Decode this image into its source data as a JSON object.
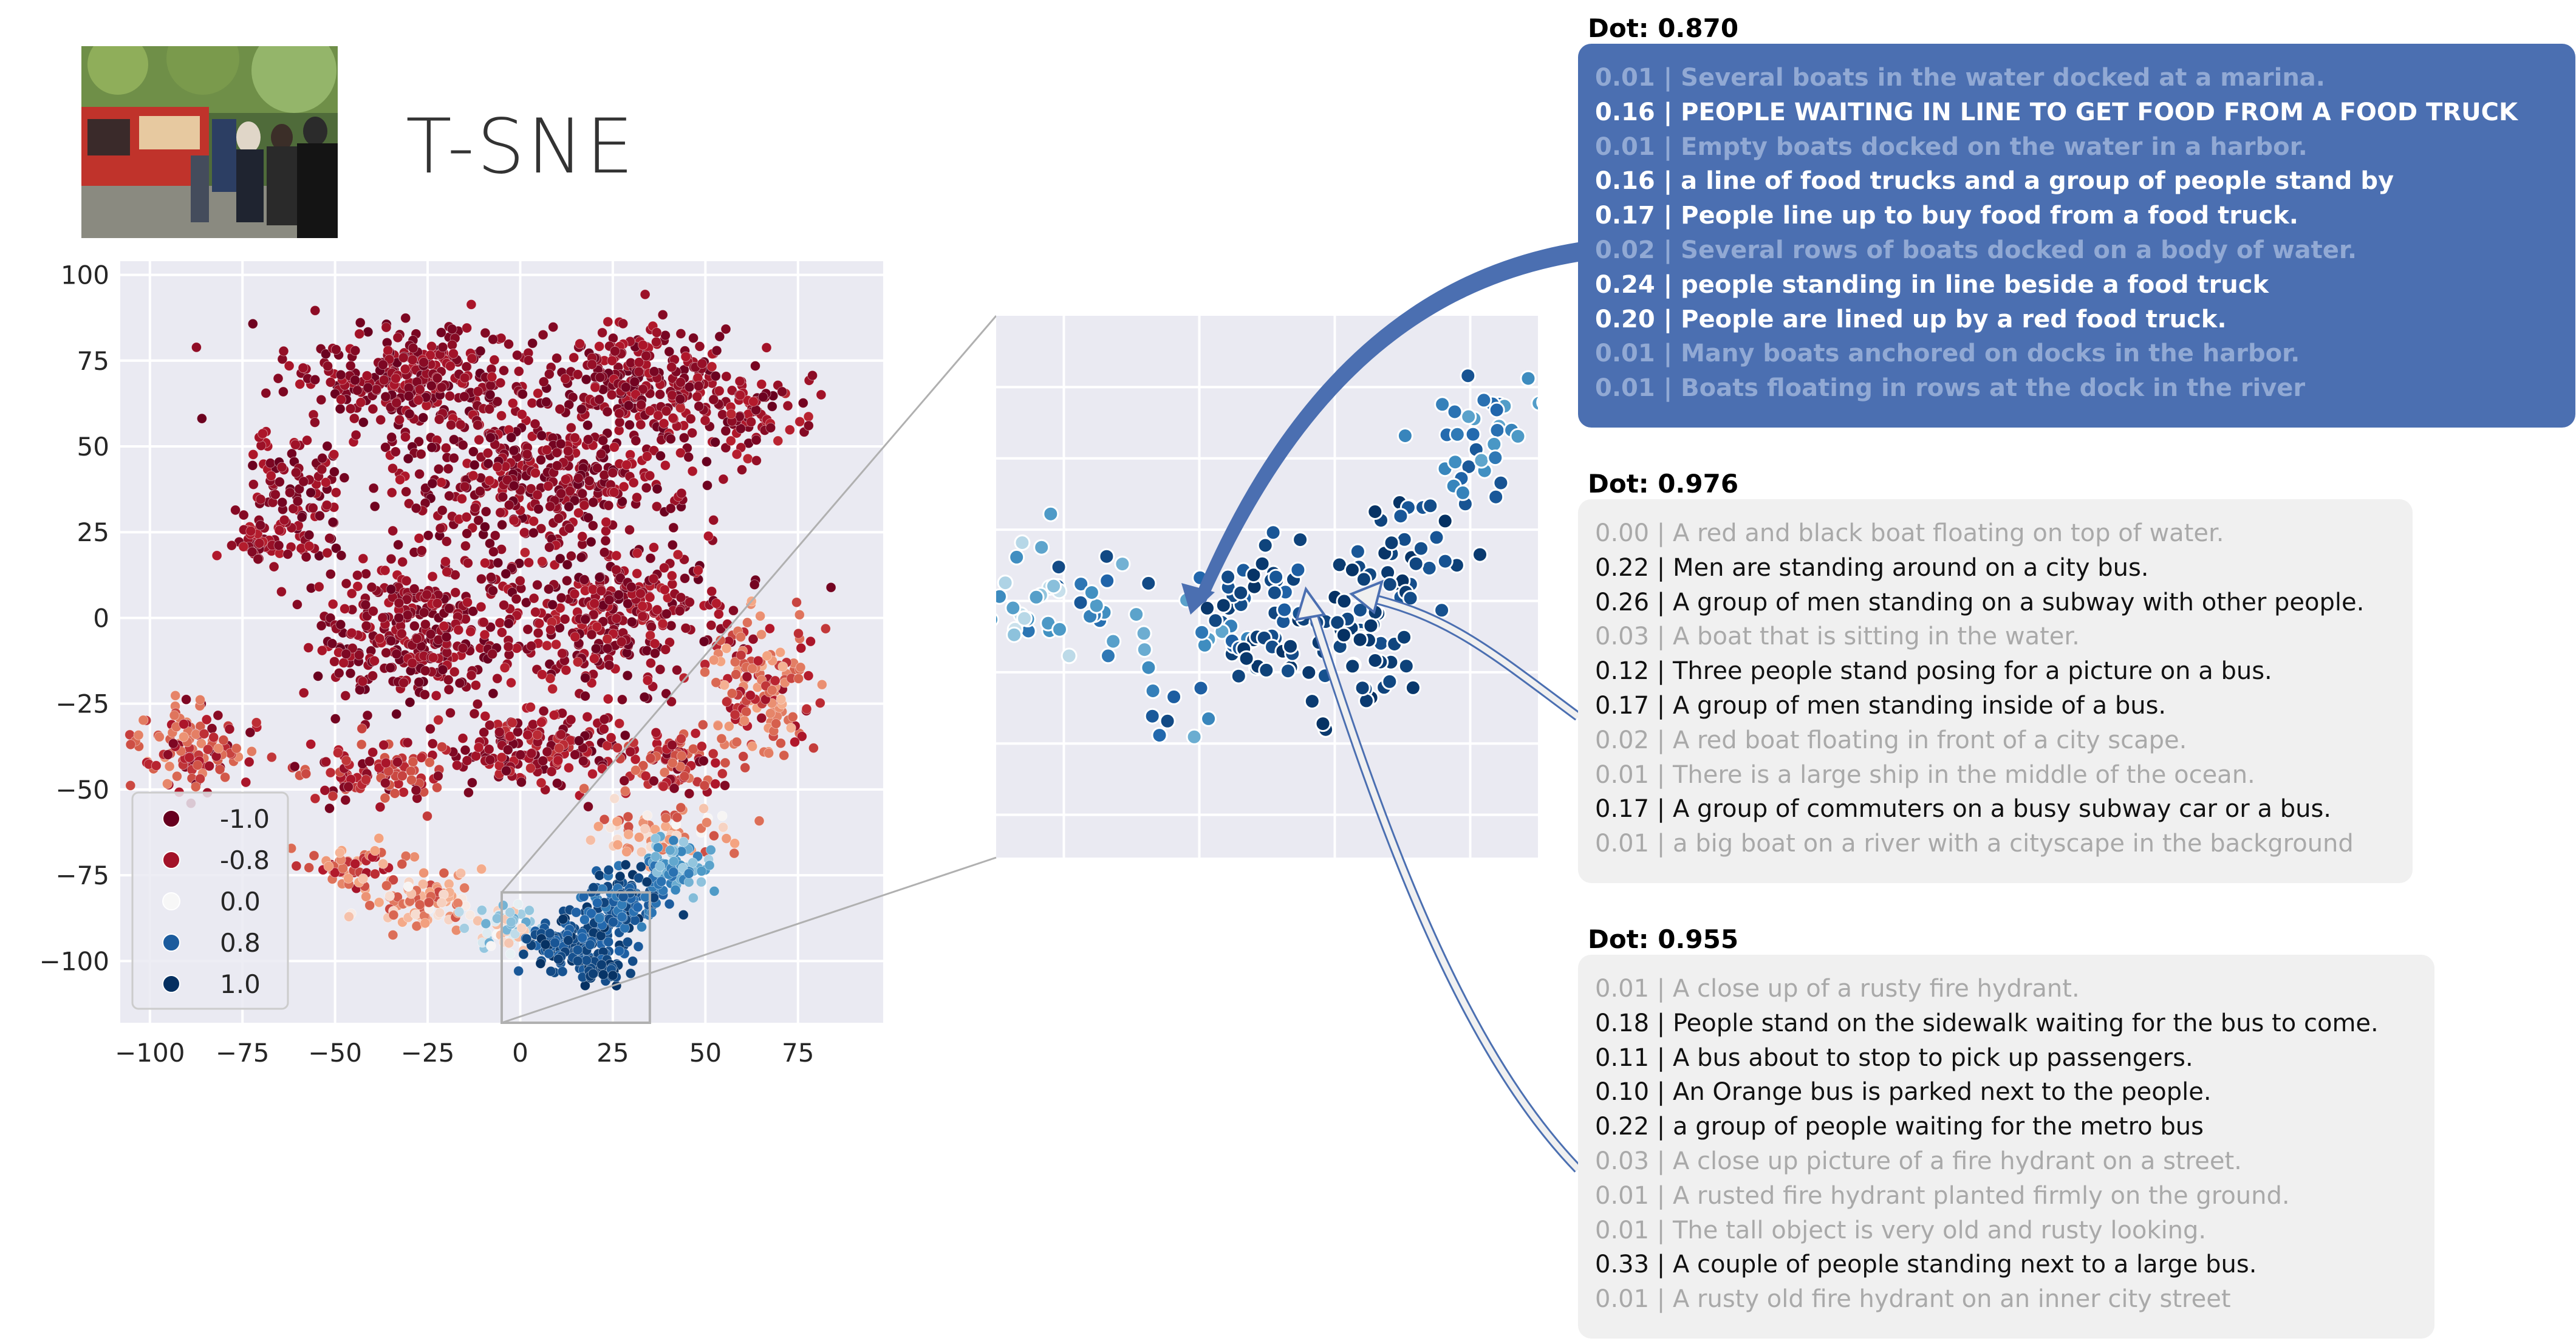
{
  "title": "T-SNE",
  "colors": {
    "dark_red": "#67001f",
    "red": "#b2182b",
    "white": "#f7f7f7",
    "blue": "#4393c3",
    "dark_blue": "#053061",
    "panel_blue": "#4b6fb1",
    "panel_gray": "#f0f0f0",
    "axes_bg": "#eaeaf2"
  },
  "thumbnail": {
    "icon": "food-truck-photo"
  },
  "chart_data": {
    "type": "scatter",
    "title": "T-SNE",
    "xlabel": "",
    "ylabel": "",
    "xlim": [
      -108,
      98
    ],
    "ylim": [
      -118,
      104
    ],
    "xticks": [
      -100,
      -75,
      -50,
      -25,
      0,
      25,
      50,
      75
    ],
    "yticks": [
      100,
      75,
      50,
      25,
      0,
      -25,
      -50,
      -75,
      -100
    ],
    "xtick_labels": [
      "−100",
      "−75",
      "−50",
      "−25",
      "0",
      "25",
      "50",
      "75"
    ],
    "ytick_labels": [
      "100",
      "75",
      "50",
      "25",
      "0",
      "−25",
      "−50",
      "−75",
      "−100"
    ],
    "grid": true,
    "legend_position": "bottom-left",
    "legend": [
      {
        "label": "-1.0",
        "value": -1.0
      },
      {
        "label": "-0.8",
        "value": -0.8
      },
      {
        "label": "0.0",
        "value": 0.0
      },
      {
        "label": "0.8",
        "value": 0.8
      },
      {
        "label": "1.0",
        "value": 1.0
      }
    ],
    "clusters": [
      {
        "cx": -30,
        "cy": 70,
        "rx": 30,
        "ry": 14,
        "n": 300,
        "vmin": -1.0,
        "vmax": -0.75
      },
      {
        "cx": 30,
        "cy": 70,
        "rx": 26,
        "ry": 14,
        "n": 260,
        "vmin": -1.0,
        "vmax": -0.75
      },
      {
        "cx": 5,
        "cy": 40,
        "rx": 40,
        "ry": 20,
        "n": 420,
        "vmin": -1.0,
        "vmax": -0.75
      },
      {
        "cx": 62,
        "cy": 60,
        "rx": 16,
        "ry": 10,
        "n": 90,
        "vmin": -1.0,
        "vmax": -0.7
      },
      {
        "cx": -60,
        "cy": 35,
        "rx": 12,
        "ry": 18,
        "n": 110,
        "vmin": -1.0,
        "vmax": -0.75
      },
      {
        "cx": -72,
        "cy": 22,
        "rx": 6,
        "ry": 6,
        "n": 40,
        "vmin": -0.95,
        "vmax": -0.7
      },
      {
        "cx": -28,
        "cy": -5,
        "rx": 25,
        "ry": 22,
        "n": 330,
        "vmin": -1.0,
        "vmax": -0.75
      },
      {
        "cx": 25,
        "cy": 0,
        "rx": 28,
        "ry": 20,
        "n": 320,
        "vmin": -1.0,
        "vmax": -0.7
      },
      {
        "cx": 5,
        "cy": -38,
        "rx": 22,
        "ry": 10,
        "n": 160,
        "vmin": -1.0,
        "vmax": -0.65
      },
      {
        "cx": -38,
        "cy": -45,
        "rx": 18,
        "ry": 9,
        "n": 110,
        "vmin": -0.95,
        "vmax": -0.5
      },
      {
        "cx": 40,
        "cy": -42,
        "rx": 12,
        "ry": 9,
        "n": 80,
        "vmin": -0.95,
        "vmax": -0.4
      },
      {
        "cx": 65,
        "cy": -22,
        "rx": 14,
        "ry": 18,
        "n": 160,
        "vmin": -0.85,
        "vmax": -0.2
      },
      {
        "cx": 38,
        "cy": -62,
        "rx": 16,
        "ry": 7,
        "n": 70,
        "vmin": -0.6,
        "vmax": 0.0
      },
      {
        "cx": -88,
        "cy": -38,
        "rx": 13,
        "ry": 10,
        "n": 130,
        "vmin": -0.95,
        "vmax": -0.3
      },
      {
        "cx": -45,
        "cy": -72,
        "rx": 12,
        "ry": 6,
        "n": 55,
        "vmin": -0.8,
        "vmax": -0.2
      },
      {
        "cx": -25,
        "cy": -83,
        "rx": 14,
        "ry": 8,
        "n": 90,
        "vmin": -0.6,
        "vmax": 0.0
      },
      {
        "cx": -5,
        "cy": -90,
        "rx": 10,
        "ry": 6,
        "n": 60,
        "vmin": -0.2,
        "vmax": 0.4
      },
      {
        "cx": 15,
        "cy": -95,
        "rx": 12,
        "ry": 7,
        "n": 160,
        "vmin": 0.75,
        "vmax": 1.0
      },
      {
        "cx": 28,
        "cy": -82,
        "rx": 10,
        "ry": 10,
        "n": 120,
        "vmin": 0.6,
        "vmax": 1.0
      },
      {
        "cx": 42,
        "cy": -72,
        "rx": 8,
        "ry": 8,
        "n": 70,
        "vmin": 0.2,
        "vmax": 0.7
      },
      {
        "cx": 22,
        "cy": -103,
        "rx": 6,
        "ry": 4,
        "n": 40,
        "vmin": 0.85,
        "vmax": 1.0
      }
    ],
    "zoom_region": {
      "xlim": [
        -5,
        35
      ],
      "ylim": [
        -118,
        -80
      ]
    },
    "inset": {
      "xlim": [
        -5,
        35
      ],
      "ylim": [
        -118,
        -80
      ],
      "clusters": [
        {
          "cx": 5,
          "cy": -103,
          "rx": 8,
          "ry": 5,
          "n": 45,
          "vmin": 0.35,
          "vmax": 0.9
        },
        {
          "cx": 14,
          "cy": -101,
          "rx": 4,
          "ry": 4,
          "n": 50,
          "vmin": 0.75,
          "vmax": 1.0
        },
        {
          "cx": 21,
          "cy": -103,
          "rx": 4,
          "ry": 5,
          "n": 60,
          "vmin": 0.85,
          "vmax": 1.0
        },
        {
          "cx": 26,
          "cy": -96,
          "rx": 3,
          "ry": 3,
          "n": 25,
          "vmin": 0.8,
          "vmax": 1.0
        },
        {
          "cx": 31,
          "cy": -88,
          "rx": 4,
          "ry": 4,
          "n": 35,
          "vmin": 0.4,
          "vmax": 0.9
        },
        {
          "cx": -3,
          "cy": -99,
          "rx": 3,
          "ry": 4,
          "n": 20,
          "vmin": 0.1,
          "vmax": 0.6
        }
      ]
    }
  },
  "panels": [
    {
      "dot": "Dot: 0.870",
      "lines": [
        {
          "text": "0.01 | Several boats in the water docked at a marina.",
          "hi": false
        },
        {
          "text": "0.16 | PEOPLE WAITING IN LINE TO GET FOOD FROM A FOOD TRUCK",
          "hi": true
        },
        {
          "text": "0.01 | Empty boats docked on the water in a harbor.",
          "hi": false
        },
        {
          "text": "0.16 | a line of food trucks and a group of people stand by",
          "hi": true
        },
        {
          "text": "0.17 | People line up to buy food from a food truck.",
          "hi": true
        },
        {
          "text": "0.02 | Several rows of boats docked on a body of water.",
          "hi": false
        },
        {
          "text": "0.24 | people standing in line beside a food truck",
          "hi": true
        },
        {
          "text": "0.20 | People are lined up by a red food truck.",
          "hi": true
        },
        {
          "text": "0.01 | Many boats anchored on docks in the harbor.",
          "hi": false
        },
        {
          "text": "0.01 | Boats floating in rows at the dock in the river",
          "hi": false
        }
      ]
    },
    {
      "dot": "Dot: 0.976",
      "lines": [
        {
          "text": "0.00 | A red and black boat floating on top of water.",
          "hi": false
        },
        {
          "text": "0.22 | Men are standing around on a city bus.",
          "hi": true
        },
        {
          "text": "0.26 | A group of men standing on a subway with other people.",
          "hi": true
        },
        {
          "text": "0.03 | A boat that is sitting in the water.",
          "hi": false
        },
        {
          "text": "0.12 | Three people stand posing for a picture on a bus.",
          "hi": true
        },
        {
          "text": "0.17 | A group of men standing inside of a bus.",
          "hi": true
        },
        {
          "text": "0.02 | A red boat floating in front of a city scape.",
          "hi": false
        },
        {
          "text": "0.01 | There is a large ship in the middle of the ocean.",
          "hi": false
        },
        {
          "text": "0.17 | A group of commuters on a busy subway car or a bus.",
          "hi": true
        },
        {
          "text": "0.01 | a big boat on a river with a cityscape in the background",
          "hi": false
        }
      ]
    },
    {
      "dot": "Dot: 0.955",
      "lines": [
        {
          "text": "0.01 | A close up of a rusty fire hydrant.",
          "hi": false
        },
        {
          "text": "0.18 | People stand on the sidewalk waiting for the bus to come.",
          "hi": true
        },
        {
          "text": "0.11 | A bus about to stop to pick up passengers.",
          "hi": true
        },
        {
          "text": "0.10 | An Orange bus is parked next to the people.",
          "hi": true
        },
        {
          "text": "0.22 | a group of people waiting for the metro bus",
          "hi": true
        },
        {
          "text": "0.03 | A close up picture of a fire hydrant on a street.",
          "hi": false
        },
        {
          "text": "0.01 | A rusted fire hydrant planted firmly on the ground.",
          "hi": false
        },
        {
          "text": "0.01 | The tall object is very old and rusty looking.",
          "hi": false
        },
        {
          "text": "0.33 | A couple of people standing next to a large bus.",
          "hi": true
        },
        {
          "text": "0.01 | A rusty old fire hydrant on an inner city street",
          "hi": false
        }
      ]
    }
  ]
}
